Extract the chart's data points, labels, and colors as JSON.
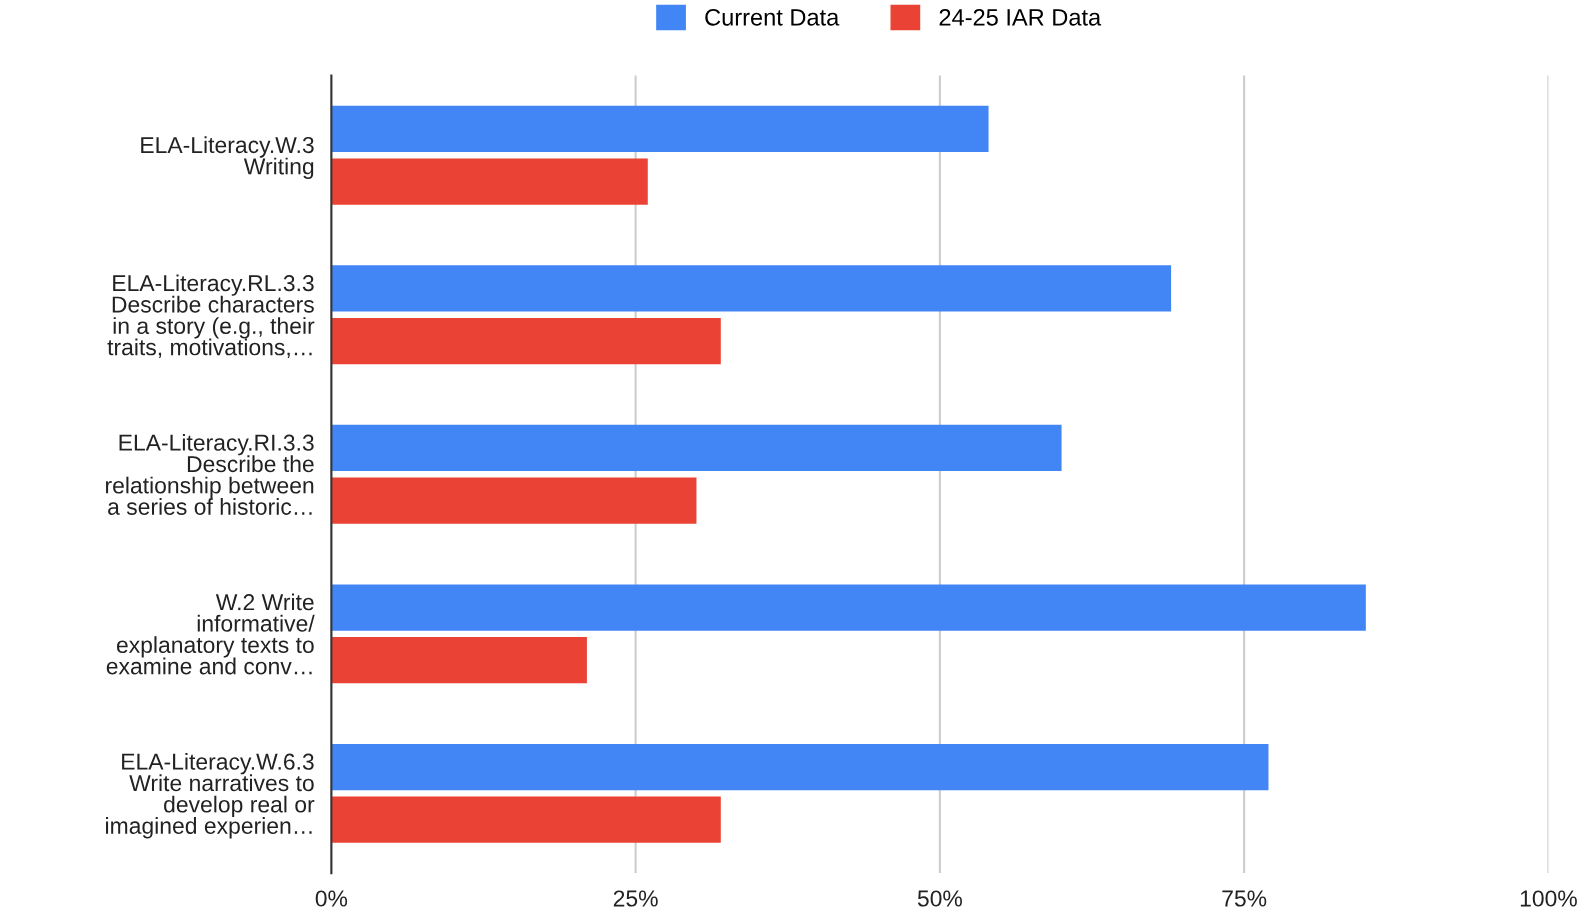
{
  "chart_data": {
    "type": "bar",
    "orientation": "horizontal",
    "categories": [
      "ELA-Literacy.W.3\nWriting",
      "ELA-Literacy.RL.3.3\nDescribe characters\nin a story (e.g., their\ntraits, motivations,…",
      "ELA-Literacy.RI.3.3\nDescribe the\nrelationship between\na series of historic…",
      "W.2 Write\ninformative/\nexplanatory texts to\nexamine and conv…",
      "ELA-Literacy.W.6.3\nWrite narratives to\ndevelop real or\nimagined experien…"
    ],
    "series": [
      {
        "name": "Current Data",
        "color": "#4285f4",
        "values": [
          0.54,
          0.69,
          0.6,
          0.85,
          0.77
        ]
      },
      {
        "name": "24-25 IAR Data",
        "color": "#ea4335",
        "values": [
          0.26,
          0.32,
          0.3,
          0.21,
          0.32
        ]
      }
    ],
    "xlim": [
      0,
      1
    ],
    "xticks": [
      {
        "value": 0,
        "label": "0%"
      },
      {
        "value": 0.25,
        "label": "25%"
      },
      {
        "value": 0.5,
        "label": "50%"
      },
      {
        "value": 0.75,
        "label": "75%"
      },
      {
        "value": 1,
        "label": "100%"
      }
    ],
    "grid": "x",
    "legend": "top"
  }
}
